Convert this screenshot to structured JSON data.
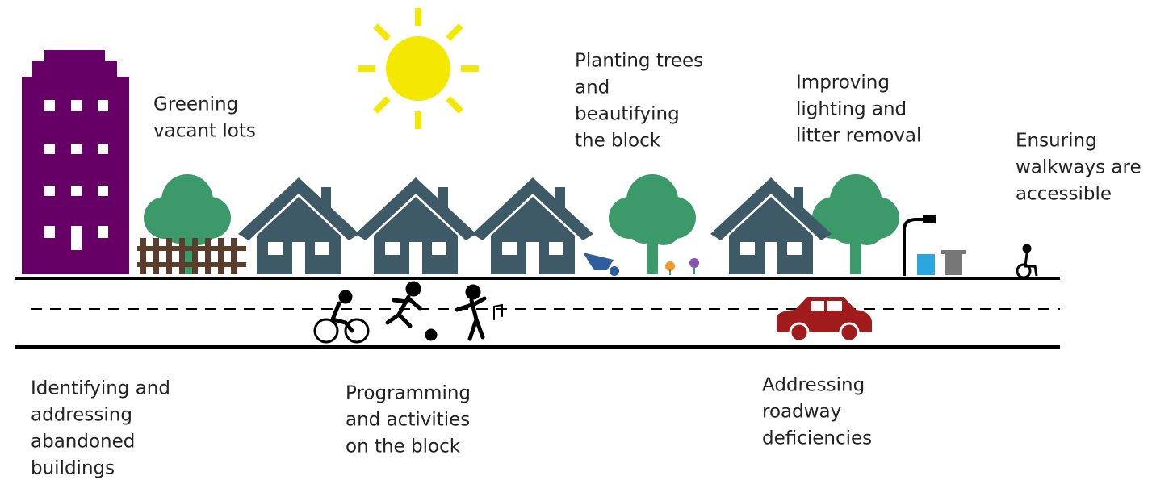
{
  "labels": [
    {
      "lines": [
        "Greening",
        "vacant lots"
      ]
    },
    {
      "lines": [
        "Planting trees",
        "and",
        "beautifying",
        "the block"
      ]
    },
    {
      "lines": [
        "Improving",
        "lighting and",
        "litter removal"
      ]
    },
    {
      "lines": [
        "Ensuring",
        "walkways are",
        "accessible"
      ]
    },
    {
      "lines": [
        "Identifying and",
        "addressing",
        "abandoned",
        "buildings"
      ]
    },
    {
      "lines": [
        "Programming",
        "and activities",
        "on the block"
      ]
    },
    {
      "lines": [
        "Addressing",
        "roadway",
        "deficiencies"
      ]
    }
  ]
}
